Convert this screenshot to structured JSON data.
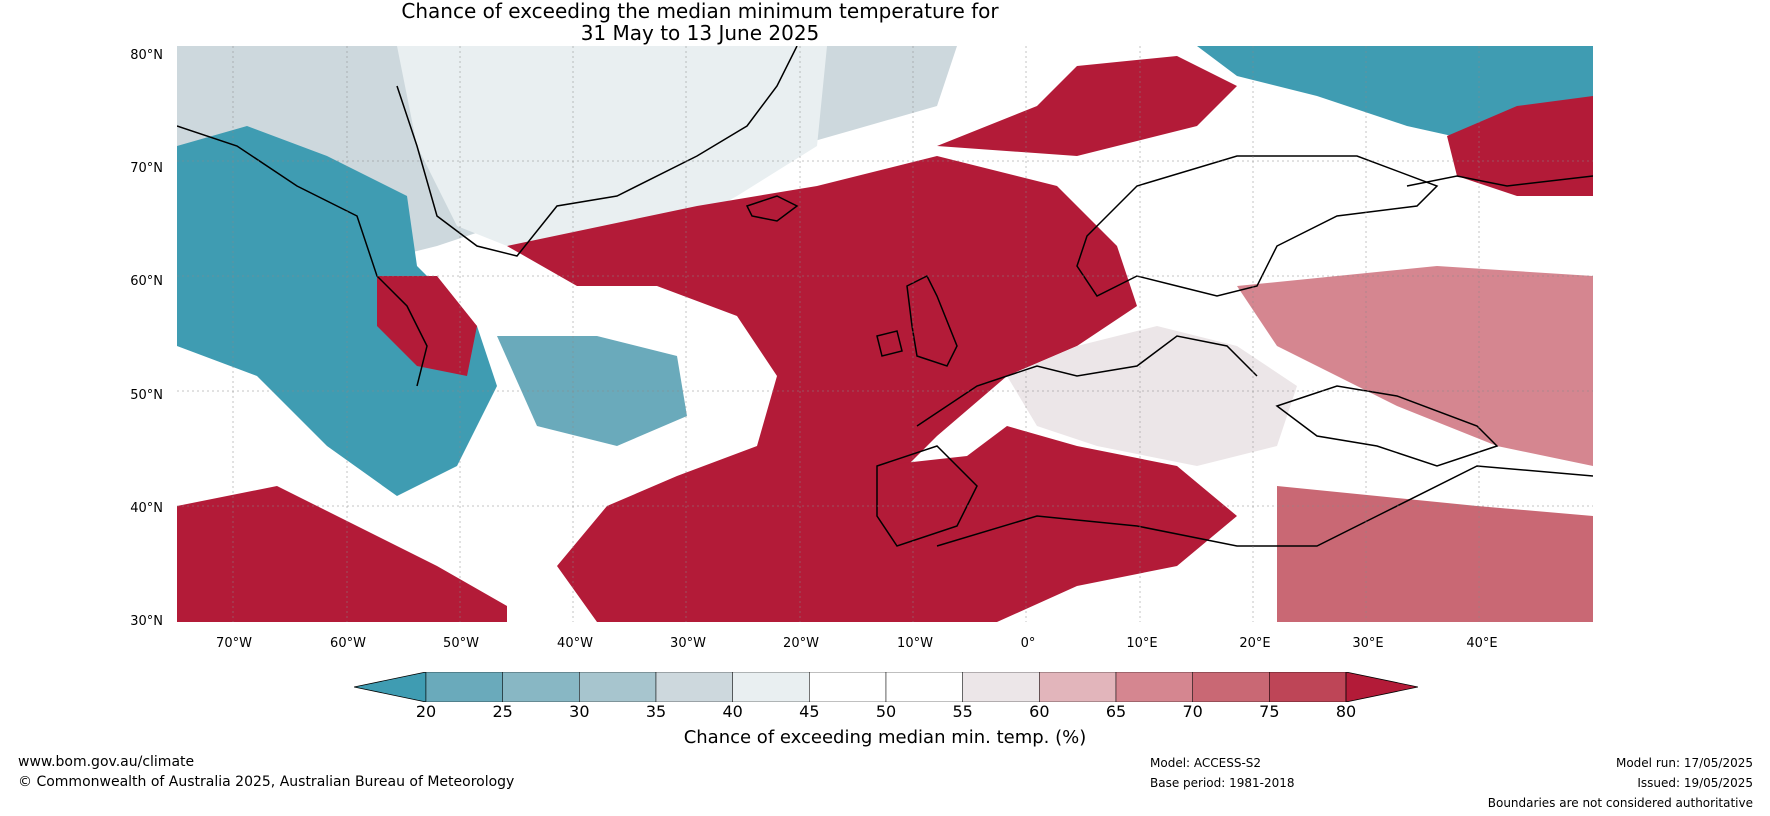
{
  "title": {
    "line1": "Chance of exceeding the median minimum temperature for",
    "line2": "31 May to 13 June 2025"
  },
  "axes": {
    "latitudes": [
      "80°N",
      "70°N",
      "60°N",
      "50°N",
      "40°N",
      "30°N"
    ],
    "longitudes": [
      "70°W",
      "60°W",
      "50°W",
      "40°W",
      "30°W",
      "20°W",
      "10°W",
      "0°",
      "10°E",
      "20°E",
      "30°E",
      "40°E"
    ]
  },
  "colorbar": {
    "ticks": [
      "20",
      "25",
      "30",
      "35",
      "40",
      "45",
      "50",
      "55",
      "60",
      "65",
      "70",
      "75",
      "80"
    ],
    "colors": [
      "#3f9cb2",
      "#6aaabb",
      "#88b7c4",
      "#a7c5ce",
      "#cdd8dd",
      "#e9eff1",
      "#ffffff",
      "#ffffff",
      "#ece6e8",
      "#e2b5bb",
      "#d58690",
      "#c96874",
      "#be4557",
      "#b31b38"
    ],
    "label": "Chance of exceeding median min. temp. (%)"
  },
  "legend_colors": {
    "warm": "#b31b38",
    "cool": "#3f9cb2",
    "neutral": "#ffffff"
  },
  "footer": {
    "website": "www.bom.gov.au/climate",
    "copyright": "© Commonwealth of Australia 2025, Australian Bureau of Meteorology",
    "model": "Model: ACCESS-S2",
    "base_period": "Base period: 1981-2018",
    "model_run": "Model run: 17/05/2025",
    "issued": "Issued: 19/05/2025",
    "disclaimer": "Boundaries are not considered authoritative"
  }
}
